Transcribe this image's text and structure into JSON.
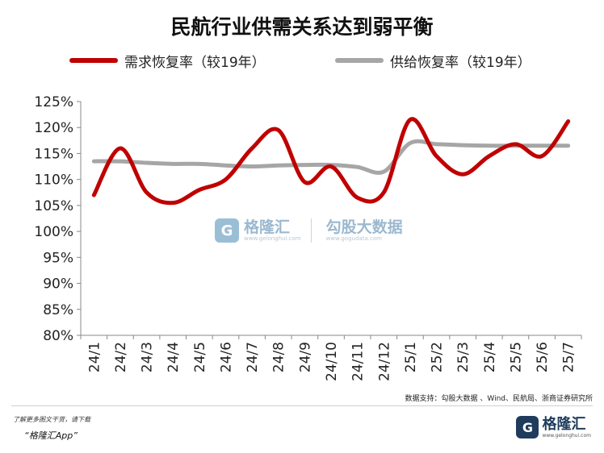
{
  "chart_data": {
    "type": "line",
    "title": "民航行业供需关系达到弱平衡",
    "categories": [
      "24/1",
      "24/2",
      "24/3",
      "24/4",
      "24/5",
      "24/6",
      "24/7",
      "24/8",
      "24/9",
      "24/10",
      "24/11",
      "24/12",
      "25/1",
      "25/2",
      "25/3",
      "25/4",
      "25/5",
      "25/6",
      "25/7"
    ],
    "series": [
      {
        "name": "需求恢复率（较19年）",
        "color": "#c00000",
        "values": [
          107.0,
          116.0,
          107.5,
          105.5,
          108.0,
          110.0,
          116.0,
          119.5,
          109.5,
          112.5,
          106.5,
          107.5,
          121.5,
          114.5,
          111.0,
          114.5,
          116.8,
          114.5,
          121.2
        ]
      },
      {
        "name": "供给恢复率（较19年）",
        "color": "#a6a6a6",
        "values": [
          113.5,
          113.5,
          113.2,
          113.0,
          113.0,
          112.7,
          112.5,
          112.7,
          112.8,
          112.8,
          112.4,
          111.5,
          117.0,
          116.8,
          116.6,
          116.5,
          116.5,
          116.5,
          116.5
        ]
      }
    ],
    "yticks": [
      "125%",
      "120%",
      "115%",
      "110%",
      "105%",
      "100%",
      "95%",
      "90%",
      "85%",
      "80%"
    ],
    "ylim": [
      80,
      125
    ],
    "grid": false,
    "legend_position": "top"
  },
  "watermark": {
    "logo": "G",
    "left_text": "格隆汇",
    "left_sub": "www.gelonghui.com",
    "right_text": "勾股大数据",
    "right_sub": "www.gogudata.com"
  },
  "source": "数据支持：勾股大数据 、Wind、民航局、浙商证券研究所",
  "footer": {
    "note": "了解更多图文干货，请下载",
    "app": "“格隆汇App”"
  },
  "brand": {
    "logo": "G",
    "name": "格隆汇",
    "sub": "www.gelonghui.com"
  }
}
